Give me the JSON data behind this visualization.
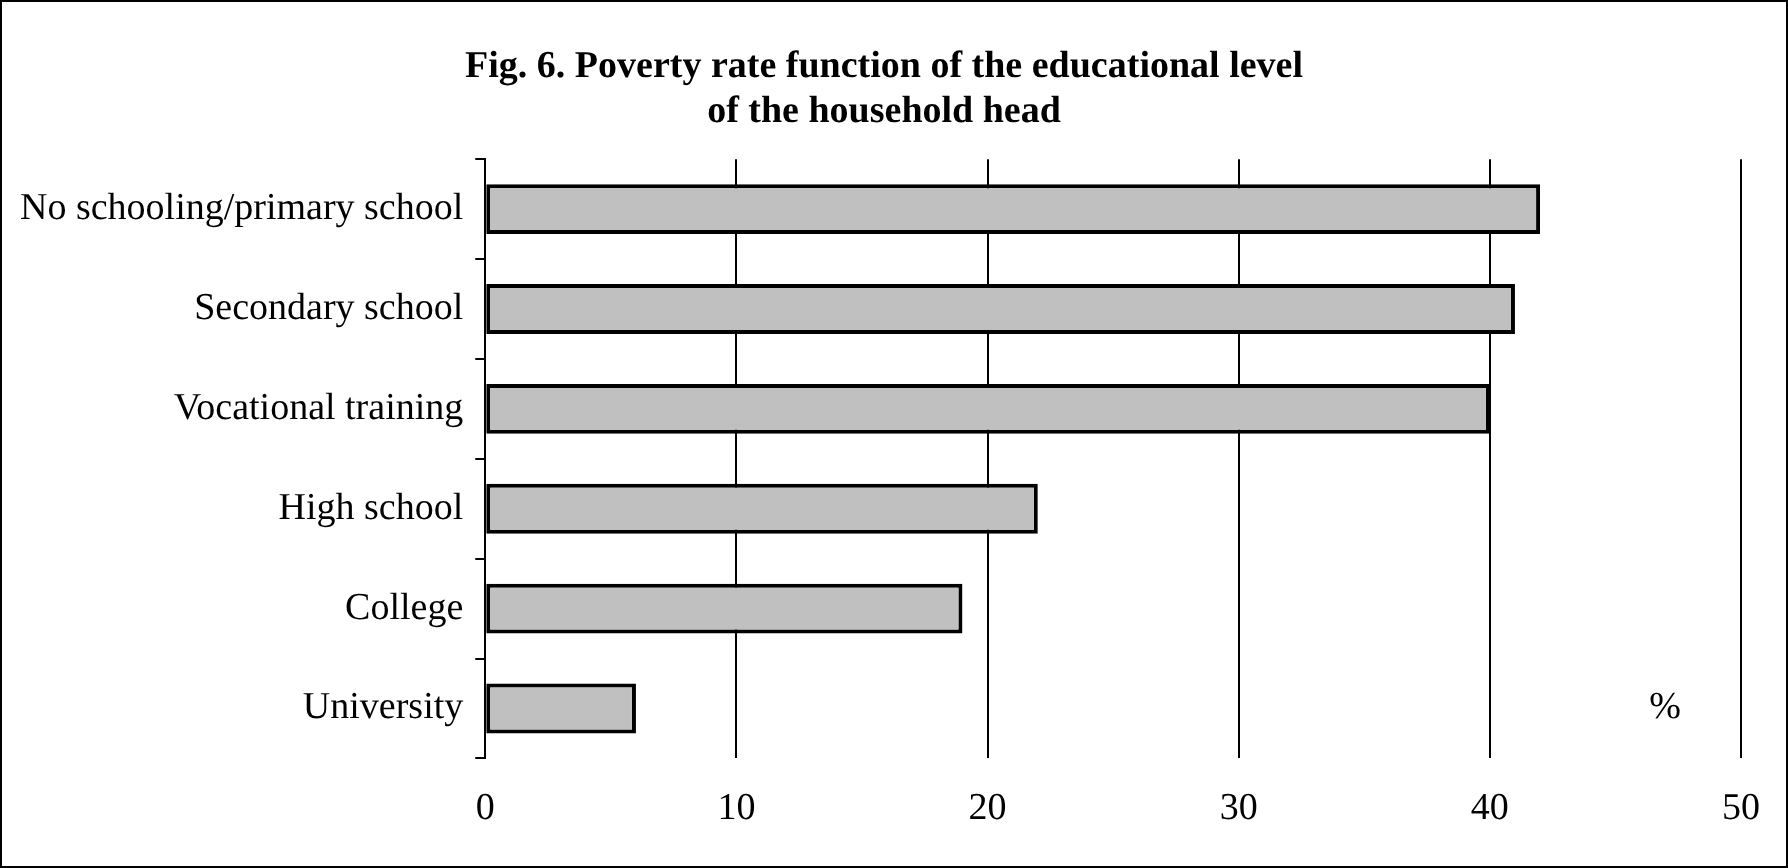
{
  "chart_data": {
    "type": "bar",
    "orientation": "horizontal",
    "title": "Fig. 6. Poverty rate function of the educational level\nof the household head",
    "xlabel": "%",
    "categories": [
      "No schooling/primary school",
      "Secondary school",
      "Vocational training",
      "High school",
      "College",
      "University"
    ],
    "values": [
      42,
      41,
      40,
      22,
      19,
      6
    ],
    "color": "#c0c0c0",
    "xlim": [
      0,
      50
    ],
    "xticks": [
      0,
      10,
      20,
      30,
      40,
      50
    ],
    "grid": "x"
  }
}
